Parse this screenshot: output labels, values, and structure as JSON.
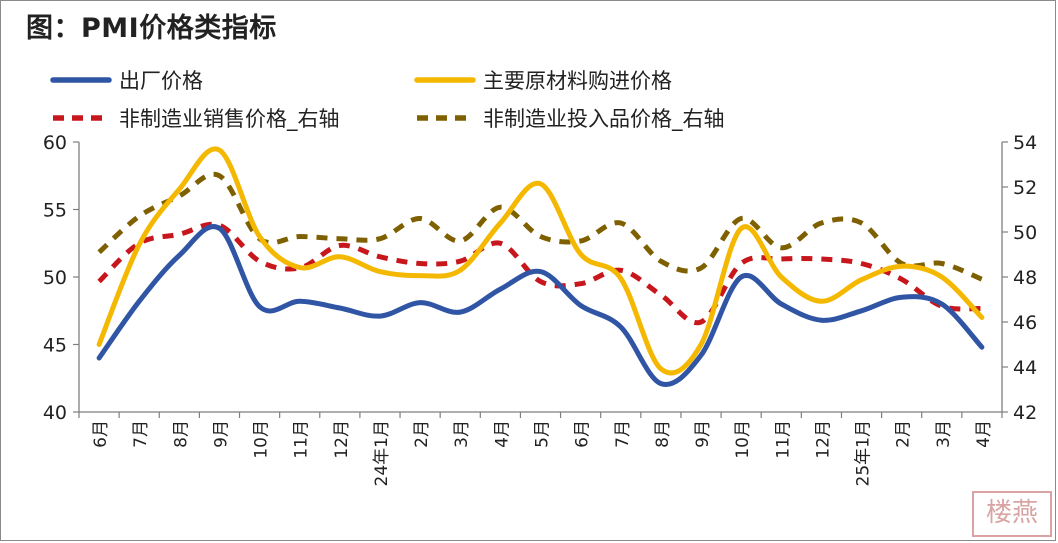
{
  "title": "图：PMI价格类指标",
  "watermark": "楼燕",
  "chart_data": {
    "type": "line",
    "title": "图：PMI价格类指标",
    "categories": [
      "6月",
      "7月",
      "8月",
      "9月",
      "10月",
      "11月",
      "12月",
      "24年1月",
      "2月",
      "3月",
      "4月",
      "5月",
      "6月",
      "7月",
      "8月",
      "9月",
      "10月",
      "11月",
      "12月",
      "25年1月",
      "2月",
      "3月",
      "4月"
    ],
    "left_axis": {
      "range": [
        40,
        60
      ],
      "ticks": [
        40,
        45,
        50,
        55,
        60
      ]
    },
    "right_axis": {
      "range": [
        42,
        54
      ],
      "ticks": [
        42,
        44,
        46,
        48,
        50,
        52,
        54
      ]
    },
    "series": [
      {
        "name": "出厂价格",
        "axis": "left",
        "color": "#2f55a4",
        "style": "solid",
        "values": [
          44.0,
          48.2,
          51.6,
          53.6,
          47.8,
          48.2,
          47.7,
          47.1,
          48.1,
          47.4,
          49.1,
          50.4,
          47.9,
          46.3,
          42.1,
          44.2,
          50.0,
          48.0,
          46.8,
          47.5,
          48.5,
          48.0,
          44.8
        ]
      },
      {
        "name": "主要原材料购进价格",
        "axis": "left",
        "color": "#f5b800",
        "style": "solid",
        "values": [
          45.0,
          52.4,
          56.5,
          59.4,
          53.0,
          50.7,
          51.5,
          50.4,
          50.1,
          50.5,
          54.0,
          56.9,
          51.7,
          49.9,
          43.2,
          45.0,
          53.6,
          50.0,
          48.2,
          49.8,
          50.8,
          50.0,
          47.0
        ]
      },
      {
        "name": "非制造业销售价格_右轴",
        "axis": "right",
        "color": "#c8161d",
        "style": "dash",
        "values": [
          47.8,
          49.5,
          49.9,
          50.3,
          48.7,
          48.4,
          49.4,
          48.9,
          48.6,
          48.7,
          49.5,
          47.8,
          47.7,
          48.3,
          47.2,
          46.0,
          48.6,
          48.8,
          48.8,
          48.6,
          47.9,
          46.7,
          46.6
        ]
      },
      {
        "name": "非制造业投入品价格_右轴",
        "axis": "right",
        "color": "#7f6000",
        "style": "dash",
        "values": [
          49.1,
          50.7,
          51.6,
          52.5,
          49.7,
          49.8,
          49.7,
          49.7,
          50.6,
          49.6,
          51.1,
          49.8,
          49.6,
          50.4,
          48.7,
          48.4,
          50.6,
          49.3,
          50.4,
          50.4,
          48.6,
          48.6,
          47.9
        ]
      }
    ],
    "legend": [
      "出厂价格",
      "主要原材料购进价格",
      "非制造业销售价格_右轴",
      "非制造业投入品价格_右轴"
    ],
    "legend_position": "top",
    "grid": false
  }
}
